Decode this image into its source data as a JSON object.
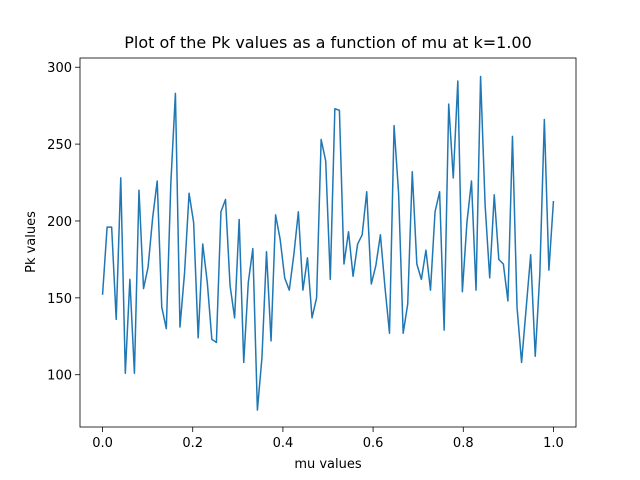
{
  "chart_data": {
    "type": "line",
    "title": "Plot of the Pk values as a function of mu at k=1.00",
    "x_label": "mu values",
    "y_label": "Pk values",
    "x": [
      0,
      0.0101,
      0.0202,
      0.0303,
      0.0404,
      0.0505,
      0.0606,
      0.0707,
      0.0808,
      0.0909,
      0.101,
      0.1111,
      0.1212,
      0.1313,
      0.1414,
      0.1515,
      0.1616,
      0.1717,
      0.1818,
      0.1919,
      0.202,
      0.2121,
      0.2222,
      0.2323,
      0.2424,
      0.2525,
      0.2626,
      0.2727,
      0.2828,
      0.2929,
      0.303,
      0.3131,
      0.3232,
      0.3333,
      0.3434,
      0.3535,
      0.3636,
      0.3737,
      0.3838,
      0.3939,
      0.404,
      0.4141,
      0.4242,
      0.4343,
      0.4444,
      0.4545,
      0.4646,
      0.4747,
      0.4848,
      0.4949,
      0.5051,
      0.5152,
      0.5253,
      0.5354,
      0.5455,
      0.5556,
      0.5657,
      0.5758,
      0.5859,
      0.596,
      0.6061,
      0.6162,
      0.6263,
      0.6364,
      0.6465,
      0.6566,
      0.6667,
      0.6768,
      0.6869,
      0.697,
      0.7071,
      0.7172,
      0.7273,
      0.7374,
      0.7475,
      0.7576,
      0.7677,
      0.7778,
      0.7879,
      0.798,
      0.8081,
      0.8182,
      0.8283,
      0.8384,
      0.8485,
      0.8586,
      0.8687,
      0.8788,
      0.8889,
      0.899,
      0.9091,
      0.9192,
      0.9293,
      0.9394,
      0.9495,
      0.9596,
      0.9697,
      0.9798,
      0.9899,
      1
    ],
    "values": [
      152,
      196,
      196,
      136,
      228,
      101,
      162,
      101,
      220,
      156,
      170,
      202,
      226,
      144,
      130,
      225,
      283,
      131,
      166,
      218,
      199,
      124,
      185,
      160,
      123,
      121,
      206,
      214,
      158,
      137,
      201,
      108,
      160,
      182,
      77,
      111,
      180,
      122,
      204,
      188,
      163,
      155,
      178,
      206,
      155,
      176,
      137,
      150,
      253,
      239,
      162,
      273,
      272,
      172,
      193,
      164,
      185,
      191,
      219,
      159,
      171,
      191,
      157,
      127,
      262,
      218,
      127,
      146,
      232,
      172,
      162,
      181,
      155,
      206,
      219,
      129,
      276,
      228,
      291,
      154,
      199,
      226,
      155,
      294,
      210,
      163,
      217,
      175,
      172,
      148,
      255,
      144,
      108,
      143,
      178,
      112,
      165,
      266,
      168,
      213
    ],
    "color": "#1f77b4",
    "xlim": [
      -0.05,
      1.05
    ],
    "ylim": [
      66,
      306
    ],
    "xticks": [
      {
        "value": 0,
        "label": "0.0"
      },
      {
        "value": 0.2,
        "label": "0.2"
      },
      {
        "value": 0.4,
        "label": "0.4"
      },
      {
        "value": 0.6,
        "label": "0.6"
      },
      {
        "value": 0.8,
        "label": "0.8"
      },
      {
        "value": 1,
        "label": "1.0"
      }
    ],
    "yticks": [
      100,
      150,
      200,
      250,
      300
    ],
    "grid": false
  }
}
